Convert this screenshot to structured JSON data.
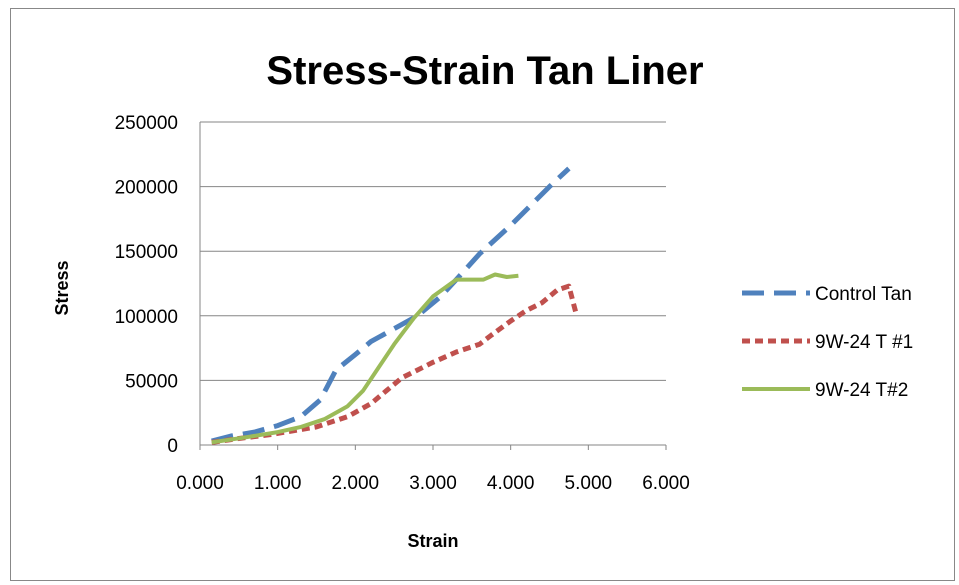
{
  "chart_data": {
    "type": "line",
    "title": "Stress-Strain Tan Liner",
    "xlabel": "Strain",
    "ylabel": "Stress",
    "xlim": [
      0,
      6
    ],
    "ylim": [
      0,
      250000
    ],
    "x_ticks": [
      "0.000",
      "1.000",
      "2.000",
      "3.000",
      "4.000",
      "5.000",
      "6.000"
    ],
    "y_ticks": [
      "0",
      "50000",
      "100000",
      "150000",
      "200000",
      "250000"
    ],
    "grid": "horizontal",
    "legend_position": "right",
    "series": [
      {
        "name": "Control Tan",
        "color": "#4f81bd",
        "dash": "long-dash",
        "points": [
          [
            0.15,
            3000
          ],
          [
            0.4,
            7000
          ],
          [
            0.7,
            10000
          ],
          [
            1.0,
            15000
          ],
          [
            1.3,
            22000
          ],
          [
            1.55,
            35000
          ],
          [
            1.75,
            58000
          ],
          [
            2.0,
            70000
          ],
          [
            2.2,
            80000
          ],
          [
            2.5,
            90000
          ],
          [
            2.8,
            100000
          ],
          [
            3.1,
            115000
          ],
          [
            3.3,
            128000
          ],
          [
            3.6,
            148000
          ],
          [
            4.0,
            170000
          ],
          [
            4.3,
            188000
          ],
          [
            4.5,
            200000
          ],
          [
            4.75,
            214000
          ]
        ]
      },
      {
        "name": "9W-24 T #1",
        "color": "#c0504d",
        "dash": "short-dash",
        "points": [
          [
            0.15,
            2000
          ],
          [
            0.5,
            5000
          ],
          [
            0.9,
            8000
          ],
          [
            1.2,
            11000
          ],
          [
            1.5,
            14000
          ],
          [
            1.9,
            22000
          ],
          [
            2.2,
            32000
          ],
          [
            2.4,
            42000
          ],
          [
            2.6,
            52000
          ],
          [
            3.0,
            64000
          ],
          [
            3.3,
            72000
          ],
          [
            3.6,
            78000
          ],
          [
            3.75,
            85000
          ],
          [
            4.0,
            96000
          ],
          [
            4.2,
            104000
          ],
          [
            4.4,
            110000
          ],
          [
            4.6,
            120000
          ],
          [
            4.75,
            123000
          ],
          [
            4.85,
            100000
          ]
        ]
      },
      {
        "name": "9W-24 T#2",
        "color": "#9bbb59",
        "dash": "solid",
        "points": [
          [
            0.15,
            2000
          ],
          [
            0.6,
            6000
          ],
          [
            1.0,
            10000
          ],
          [
            1.3,
            14000
          ],
          [
            1.6,
            20000
          ],
          [
            1.9,
            30000
          ],
          [
            2.1,
            42000
          ],
          [
            2.3,
            60000
          ],
          [
            2.5,
            78000
          ],
          [
            2.75,
            98000
          ],
          [
            3.0,
            115000
          ],
          [
            3.3,
            128000
          ],
          [
            3.5,
            128000
          ],
          [
            3.65,
            128000
          ],
          [
            3.8,
            132000
          ],
          [
            3.95,
            130000
          ],
          [
            4.1,
            131000
          ]
        ]
      }
    ]
  }
}
